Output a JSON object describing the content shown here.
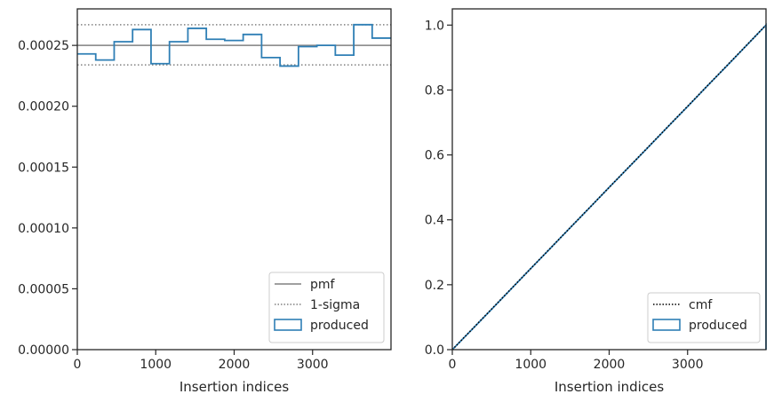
{
  "colors": {
    "produced": "#2f7fb5",
    "pmf": "#808080",
    "sigma": "#808080",
    "cmf": "#000000",
    "axes": "#262626"
  },
  "chart_data": [
    {
      "type": "step",
      "xlabel": "Insertion indices",
      "ylabel": "",
      "xlim": [
        0,
        4000
      ],
      "ylim": [
        0,
        0.00028
      ],
      "xticks": [
        0,
        1000,
        2000,
        3000
      ],
      "xtick_labels": [
        "0",
        "1000",
        "2000",
        "3000"
      ],
      "yticks": [
        0,
        5e-05,
        0.0001,
        0.00015,
        0.0002,
        0.00025
      ],
      "ytick_labels": [
        "0.00000",
        "0.00005",
        "0.00010",
        "0.00015",
        "0.00020",
        "0.00025"
      ],
      "pmf": 0.00025,
      "sigma_band": [
        0.000234,
        0.000267
      ],
      "bin_edges": [
        0,
        235,
        470,
        705,
        940,
        1175,
        1410,
        1645,
        1880,
        2115,
        2350,
        2585,
        2820,
        3055,
        3290,
        3525,
        3760,
        4000
      ],
      "produced": [
        0.000243,
        0.000238,
        0.000253,
        0.000263,
        0.000235,
        0.000253,
        0.000264,
        0.000255,
        0.000254,
        0.000259,
        0.00024,
        0.000233,
        0.000249,
        0.00025,
        0.000242,
        0.000267,
        0.000256
      ],
      "legend": {
        "position": "lower right",
        "entries": [
          {
            "label": "pmf",
            "style": "line"
          },
          {
            "label": "1-sigma",
            "style": "dotted"
          },
          {
            "label": "produced",
            "style": "box"
          }
        ]
      }
    },
    {
      "type": "line",
      "xlabel": "Insertion indices",
      "ylabel": "",
      "xlim": [
        0,
        4000
      ],
      "ylim": [
        0,
        1.05
      ],
      "xticks": [
        0,
        1000,
        2000,
        3000
      ],
      "xtick_labels": [
        "0",
        "1000",
        "2000",
        "3000"
      ],
      "yticks": [
        0,
        0.2,
        0.4,
        0.6,
        0.8,
        1.0
      ],
      "ytick_labels": [
        "0.0",
        "0.2",
        "0.4",
        "0.6",
        "0.8",
        "1.0"
      ],
      "cmf": {
        "x": [
          0,
          4000
        ],
        "y": [
          0,
          1.0
        ]
      },
      "produced": {
        "x": [
          0,
          250,
          500,
          750,
          1000,
          1250,
          1500,
          1750,
          2000,
          2250,
          2500,
          2750,
          3000,
          3250,
          3500,
          3750,
          4000,
          4000
        ],
        "y": [
          0,
          0.062,
          0.124,
          0.187,
          0.25,
          0.312,
          0.375,
          0.437,
          0.5,
          0.562,
          0.624,
          0.687,
          0.749,
          0.812,
          0.874,
          0.937,
          1.0,
          0
        ]
      },
      "legend": {
        "position": "lower right",
        "entries": [
          {
            "label": "cmf",
            "style": "dotted"
          },
          {
            "label": "produced",
            "style": "box"
          }
        ]
      }
    }
  ]
}
